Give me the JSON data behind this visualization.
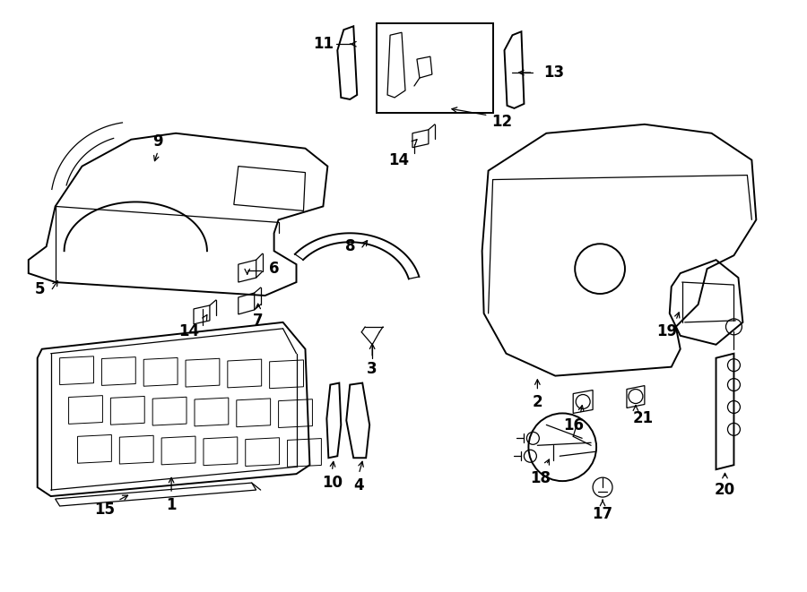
{
  "background_color": "#ffffff",
  "line_color": "#000000",
  "text_color": "#000000",
  "figsize": [
    9.0,
    6.61
  ],
  "dpi": 100
}
